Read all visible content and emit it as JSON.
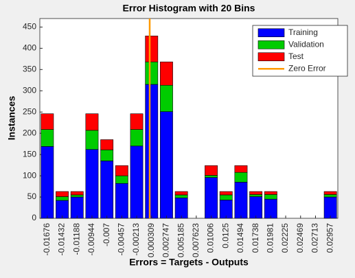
{
  "chart_data": {
    "type": "stacked-histogram",
    "title": "Error Histogram with 20 Bins",
    "xlabel": "Errors = Targets - Outputs",
    "ylabel": "Instances",
    "categories": [
      "-0.01676",
      "-0.01432",
      "-0.01188",
      "-0.00944",
      "-0.007",
      "-0.00457",
      "-0.00213",
      "0.000309",
      "0.002747",
      "0.005185",
      "0.007623",
      "0.01006",
      "0.0125",
      "0.01494",
      "0.01738",
      "0.01981",
      "0.02225",
      "0.02469",
      "0.02713",
      "0.02957"
    ],
    "series": [
      {
        "name": "Training",
        "color": "#0000ff",
        "values": [
          169,
          42,
          50,
          162,
          135,
          82,
          170,
          315,
          251,
          48,
          0,
          96,
          43,
          85,
          51,
          45,
          0,
          0,
          0,
          50
        ]
      },
      {
        "name": "Validation",
        "color": "#00cc00",
        "values": [
          40,
          9,
          5,
          45,
          26,
          18,
          39,
          53,
          62,
          7,
          0,
          5,
          12,
          23,
          5,
          11,
          0,
          0,
          0,
          6
        ]
      },
      {
        "name": "Test",
        "color": "#ff0000",
        "values": [
          37,
          12,
          8,
          39,
          24,
          24,
          37,
          61,
          55,
          8,
          0,
          23,
          8,
          16,
          7,
          7,
          0,
          0,
          0,
          7
        ]
      }
    ],
    "zero_error": {
      "name": "Zero Error",
      "color": "#ff9900",
      "value": 0
    },
    "ylim": [
      0,
      470
    ],
    "yticks": [
      0,
      50,
      100,
      150,
      200,
      250,
      300,
      350,
      400,
      450
    ],
    "legend": "upper right"
  }
}
